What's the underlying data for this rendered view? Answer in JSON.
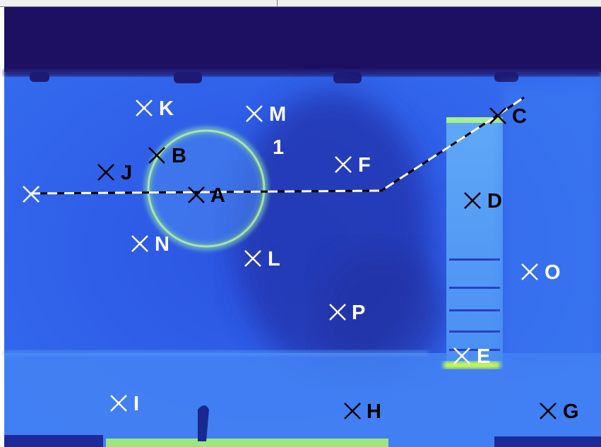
{
  "image": {
    "kind": "thermal-infrared-view",
    "colors": {
      "sky_band": "#1d0f62",
      "wall_base": "#2f63ef",
      "warm_spot": "#9ef09a",
      "hot_spot": "#c8ff4a",
      "cold_patch": "#263ab8",
      "marker_white": "#ffffff",
      "marker_black": "#000000"
    }
  },
  "region_label": "1",
  "markers": [
    {
      "id": "A",
      "label": "A",
      "color": "black"
    },
    {
      "id": "B",
      "label": "B",
      "color": "black"
    },
    {
      "id": "C",
      "label": "C",
      "color": "black"
    },
    {
      "id": "D",
      "label": "D",
      "color": "black"
    },
    {
      "id": "E",
      "label": "E",
      "color": "white"
    },
    {
      "id": "F",
      "label": "F",
      "color": "white"
    },
    {
      "id": "G",
      "label": "G",
      "color": "black"
    },
    {
      "id": "H",
      "label": "H",
      "color": "black"
    },
    {
      "id": "I",
      "label": "I",
      "color": "white"
    },
    {
      "id": "J",
      "label": "J",
      "color": "black"
    },
    {
      "id": "K",
      "label": "K",
      "color": "white"
    },
    {
      "id": "L",
      "label": "L",
      "color": "white"
    },
    {
      "id": "M",
      "label": "M",
      "color": "white"
    },
    {
      "id": "N",
      "label": "N",
      "color": "white"
    },
    {
      "id": "O",
      "label": "O",
      "color": "white"
    },
    {
      "id": "P",
      "label": "P",
      "color": "white"
    }
  ],
  "profile_line": {
    "style": "dashed-black-white",
    "start_marker": "unlabeled"
  }
}
